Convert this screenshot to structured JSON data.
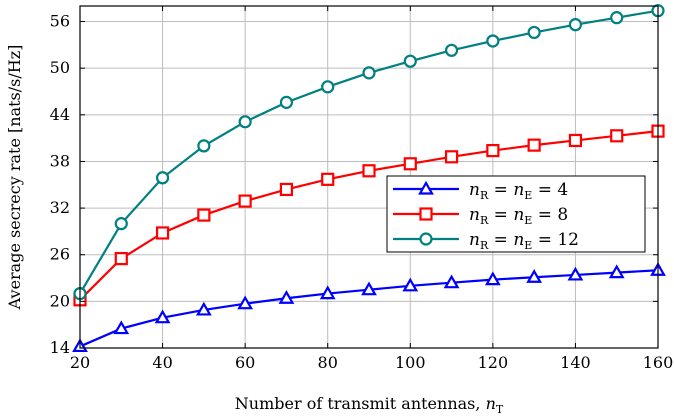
{
  "chart_data": {
    "type": "line",
    "xlabel_text": "Number of transmit antennas, ",
    "xlabel_var": "n",
    "xlabel_sub": "T",
    "ylabel": "Average secrecy rate [nats/s/Hz]",
    "xlim": [
      20,
      160
    ],
    "ylim": [
      14,
      58
    ],
    "xticks": [
      20,
      40,
      60,
      80,
      100,
      120,
      140,
      160
    ],
    "yticks": [
      14,
      20,
      26,
      32,
      38,
      44,
      50,
      56
    ],
    "grid": true,
    "legend_position": "center-right",
    "x": [
      20,
      30,
      40,
      50,
      60,
      70,
      80,
      90,
      100,
      110,
      120,
      130,
      140,
      150,
      160
    ],
    "series": [
      {
        "name": "n_R = n_E = 4",
        "legend_prefix": "n",
        "legend_sub1": "R",
        "legend_mid": " = n",
        "legend_sub2": "E",
        "legend_value": " = 4",
        "color": "#0000ff",
        "marker": "triangle",
        "values": [
          14.2,
          16.5,
          17.9,
          18.9,
          19.7,
          20.4,
          21.0,
          21.5,
          22.0,
          22.4,
          22.8,
          23.1,
          23.4,
          23.7,
          24.0
        ]
      },
      {
        "name": "n_R = n_E = 8",
        "legend_prefix": "n",
        "legend_sub1": "R",
        "legend_mid": " = n",
        "legend_sub2": "E",
        "legend_value": " = 8",
        "color": "#ff0000",
        "marker": "square",
        "values": [
          20.2,
          25.5,
          28.8,
          31.1,
          32.9,
          34.4,
          35.7,
          36.8,
          37.7,
          38.6,
          39.4,
          40.1,
          40.7,
          41.3,
          41.9
        ]
      },
      {
        "name": "n_R = n_E = 12",
        "legend_prefix": "n",
        "legend_sub1": "R",
        "legend_mid": " = n",
        "legend_sub2": "E",
        "legend_value": " = 12",
        "color": "#008080",
        "marker": "circle",
        "values": [
          21.0,
          30.0,
          35.9,
          40.0,
          43.1,
          45.6,
          47.6,
          49.4,
          50.9,
          52.3,
          53.5,
          54.6,
          55.6,
          56.5,
          57.4
        ]
      }
    ]
  }
}
